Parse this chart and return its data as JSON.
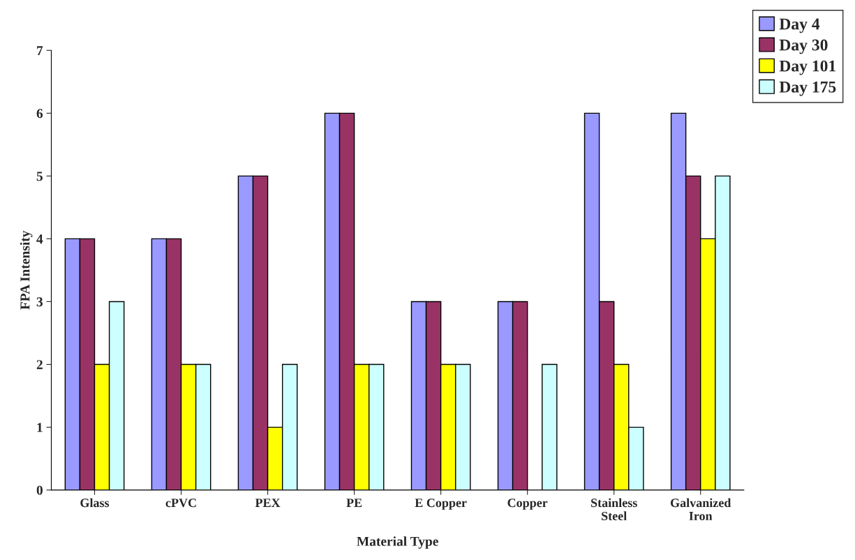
{
  "chart_data": {
    "type": "bar",
    "xlabel": "Material Type",
    "ylabel": "FPA Intensity",
    "categories": [
      "Glass",
      "cPVC",
      "PEX",
      "PE",
      "E Copper",
      "Copper",
      "Stainless\nSteel",
      "Galvanized\nIron"
    ],
    "series": [
      {
        "name": "Day 4",
        "color": "#9999ff",
        "values": [
          4,
          4,
          5,
          6,
          3,
          3,
          6,
          6
        ]
      },
      {
        "name": "Day 30",
        "color": "#993366",
        "values": [
          4,
          4,
          5,
          6,
          3,
          3,
          3,
          5
        ]
      },
      {
        "name": "Day 101",
        "color": "#ffff00",
        "values": [
          2,
          2,
          1,
          2,
          2,
          null,
          2,
          4
        ]
      },
      {
        "name": "Day 175",
        "color": "#ccffff",
        "values": [
          3,
          2,
          2,
          2,
          2,
          2,
          1,
          5
        ]
      }
    ],
    "ylim": [
      0,
      7
    ],
    "yticks": [
      0,
      1,
      2,
      3,
      4,
      5,
      6,
      7
    ],
    "grid": false,
    "legend": "top right"
  }
}
